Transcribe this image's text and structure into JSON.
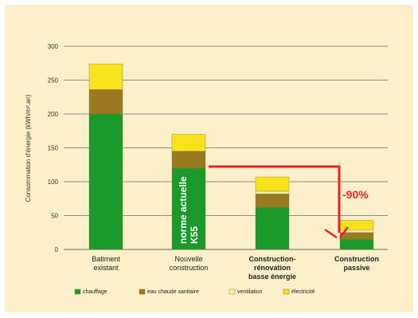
{
  "chart_data": {
    "type": "bar",
    "stacked": true,
    "ylabel": "Consommation d'énergie (kWh/m².an)",
    "ylim": [
      0,
      300
    ],
    "yticks": [
      0,
      50,
      100,
      150,
      200,
      250,
      300
    ],
    "grid": true,
    "legend_position": "bottom",
    "categories": [
      {
        "lines": [
          "Batiment",
          "existant"
        ],
        "bold": false
      },
      {
        "lines": [
          "Nouvelle",
          "construction"
        ],
        "bold": false
      },
      {
        "lines": [
          "Construction-",
          "rénovation",
          "basse énergie"
        ],
        "bold": true
      },
      {
        "lines": [
          "Construction",
          "passive"
        ],
        "bold": true
      }
    ],
    "series": [
      {
        "name": "chauffage",
        "color": "#1a9a2a",
        "values": [
          200,
          120,
          62,
          15
        ]
      },
      {
        "name": "eau chaude sanitaire",
        "color": "#9a7a1e",
        "values": [
          36,
          25,
          20,
          10
        ]
      },
      {
        "name": "ventilation",
        "color": "#f6f0b0",
        "values": [
          0,
          0,
          4,
          4
        ]
      },
      {
        "name": "électricité",
        "color": "#f7e21b",
        "values": [
          38,
          25,
          21,
          14
        ]
      }
    ],
    "annotations": {
      "bar_label_lines": [
        "norme actuelle",
        "K55"
      ],
      "reduction_label": "-90%",
      "arrow_color": "#e8202a"
    }
  }
}
